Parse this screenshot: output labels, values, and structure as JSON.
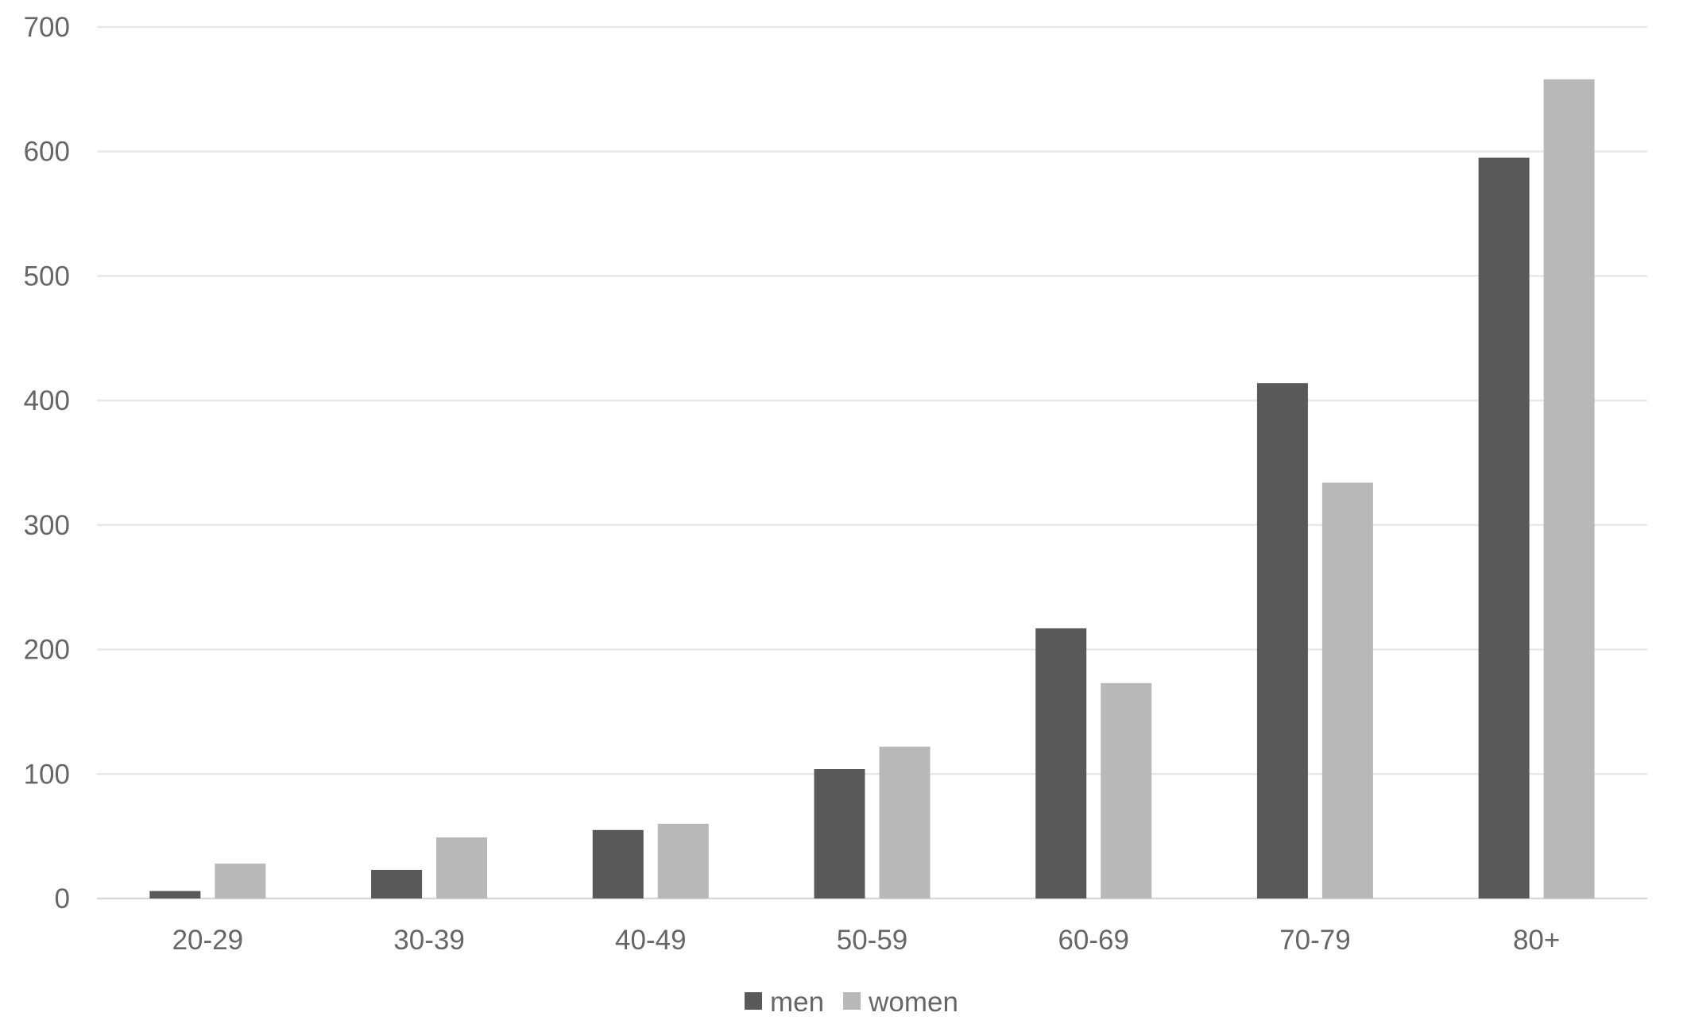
{
  "chart_data": {
    "type": "bar",
    "categories": [
      "20-29",
      "30-39",
      "40-49",
      "50-59",
      "60-69",
      "70-79",
      "80+"
    ],
    "series": [
      {
        "name": "men",
        "color": "#595959",
        "values": [
          6,
          23,
          55,
          104,
          217,
          414,
          595
        ]
      },
      {
        "name": "women",
        "color": "#b8b8b8",
        "values": [
          28,
          49,
          60,
          122,
          173,
          334,
          658
        ]
      }
    ],
    "title": "",
    "xlabel": "",
    "ylabel": "",
    "ylim": [
      0,
      700
    ],
    "yticks": [
      0,
      100,
      200,
      300,
      400,
      500,
      600,
      700
    ],
    "grid": true,
    "legend": "bottom"
  }
}
